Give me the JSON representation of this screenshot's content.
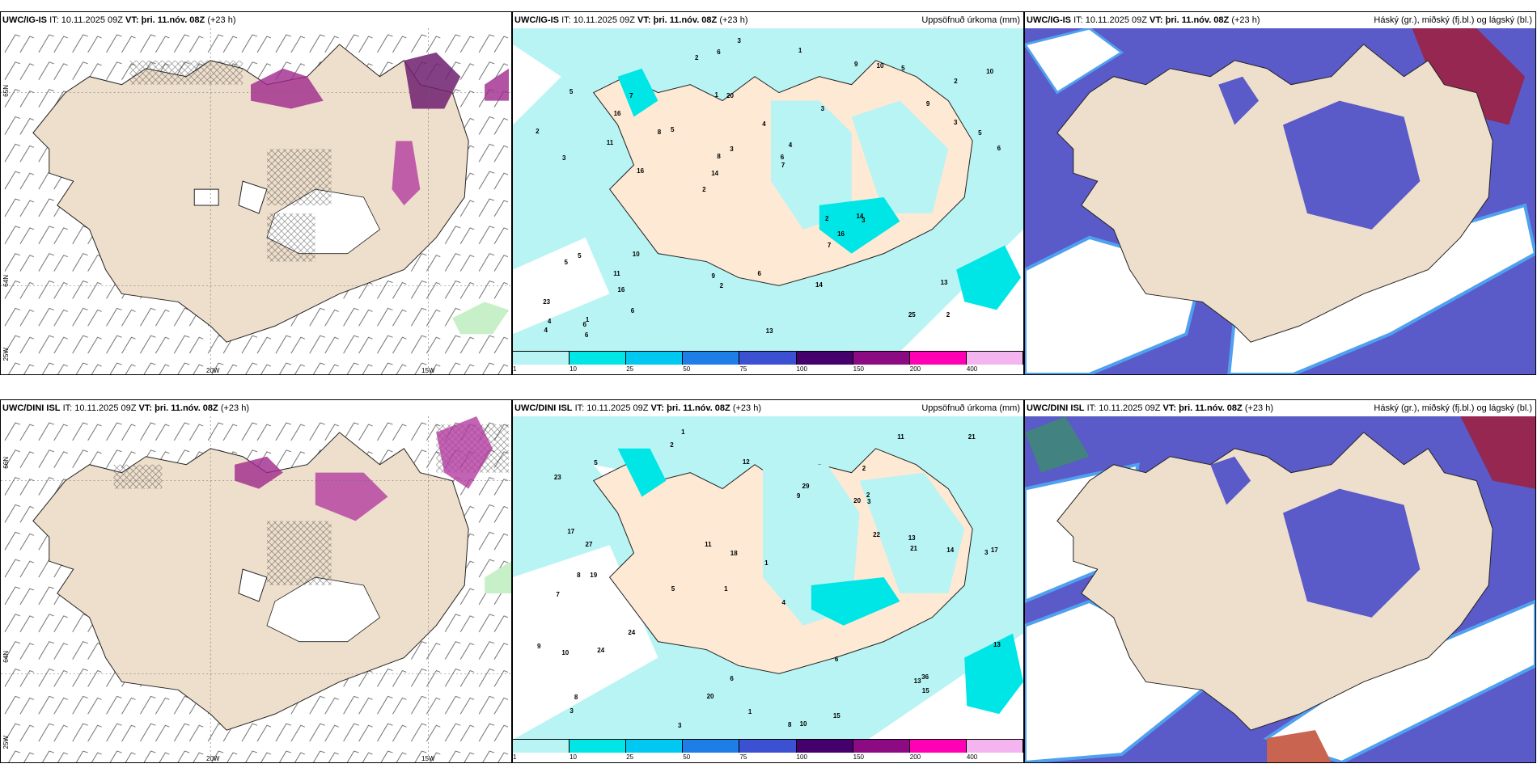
{
  "top": {
    "wind": {
      "model": "UWC/IG-IS",
      "it": "IT: 10.11.2025 09Z",
      "vt": "VT: þri. 11.nóv. 08Z",
      "lead": "(+23 h)",
      "axis": {
        "lat_a": "65N",
        "lat_b": "64N",
        "lon_a": "20W",
        "lon_b": "15W",
        "lon_c": "25W"
      }
    },
    "precip": {
      "model": "UWC/IG-IS",
      "it": "IT: 10.11.2025 09Z",
      "vt": "VT: þri. 11.nóv. 08Z",
      "lead": "(+23 h)",
      "title": "Uppsöfnuð úrkoma (mm)"
    },
    "cloud": {
      "model": "UWC/IG-IS",
      "it": "IT: 10.11.2025 09Z",
      "vt": "VT: þri. 11.nóv. 08Z",
      "lead": "(+23 h)",
      "title": "Háský (gr.), miðský (fj.bl.) og lágský (bl.)"
    }
  },
  "bottom": {
    "wind": {
      "model": "UWC/DINI ISL",
      "it": "IT: 10.11.2025 09Z",
      "vt": "VT: þri. 11.nóv. 08Z",
      "lead": "(+23 h)",
      "axis": {
        "lat_a": "66N",
        "lat_b": "64N",
        "lon_a": "20W",
        "lon_b": "15W",
        "lon_c": "25W"
      }
    },
    "precip": {
      "model": "UWC/DINI ISL",
      "it": "IT: 10.11.2025 09Z",
      "vt": "VT: þri. 11.nóv. 08Z",
      "lead": "(+23 h)",
      "title": "Uppsöfnuð úrkoma (mm)"
    },
    "cloud": {
      "model": "UWC/DINI ISL",
      "it": "IT: 10.11.2025 09Z",
      "vt": "VT: þri. 11.nóv. 08Z",
      "lead": "(+23 h)",
      "title": "Háský (gr.), miðský (fj.bl.) og lágský (bl.)"
    }
  },
  "legend": {
    "ticks": [
      "1",
      "10",
      "25",
      "50",
      "75",
      "100",
      "150",
      "200",
      "400"
    ],
    "colors": [
      "#b8f4f4",
      "#00e6e6",
      "#00c8f0",
      "#1e7ee6",
      "#3c50d2",
      "#46006e",
      "#8c0a82",
      "#ff00b4",
      "#f4b4f0"
    ]
  },
  "precip_top_labels": [
    "2",
    "3",
    "2",
    "2",
    "3",
    "1",
    "1",
    "4",
    "5",
    "5",
    "23",
    "16",
    "20",
    "4",
    "3",
    "5",
    "6",
    "6",
    "2",
    "3",
    "14",
    "9",
    "8",
    "7",
    "9",
    "10",
    "25",
    "13",
    "14",
    "13",
    "8",
    "11",
    "7",
    "6",
    "5",
    "6",
    "4",
    "2",
    "7",
    "5",
    "9",
    "10",
    "16",
    "14",
    "11",
    "6",
    "4",
    "6",
    "5",
    "3",
    "16",
    "2",
    "16",
    "10",
    "6",
    "1",
    "2",
    "3"
  ],
  "precip_bottom_labels": [
    "1",
    "2",
    "3",
    "1",
    "4",
    "19",
    "23",
    "20",
    "7",
    "9",
    "1",
    "3",
    "2",
    "5",
    "8",
    "10",
    "6",
    "11",
    "22",
    "24",
    "27",
    "8",
    "17",
    "14",
    "9",
    "17",
    "18",
    "21",
    "36",
    "10",
    "13",
    "29",
    "24",
    "11",
    "6",
    "13",
    "13",
    "20",
    "21",
    "12",
    "8",
    "3",
    "15",
    "5",
    "1",
    "3",
    "15",
    "2"
  ],
  "colors": {
    "land": "#eedfcc",
    "sea": "#ffffff",
    "precip_light": "#b8f4f4",
    "precip_mid": "#00e6e6",
    "cloud_low": "#5a5ac8",
    "cloud_high": "#a01e3c",
    "cloud_edge": "#50a0f0",
    "snow": "#a0288c"
  }
}
